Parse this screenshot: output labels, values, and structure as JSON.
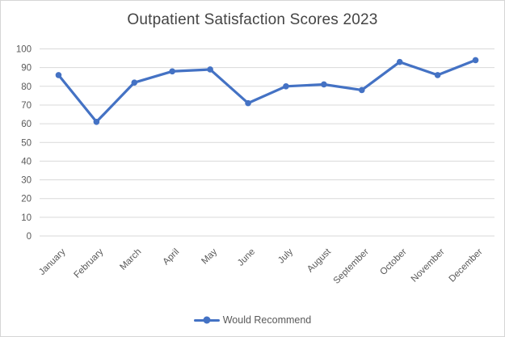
{
  "chart_data": {
    "type": "line",
    "title": "Outpatient Satisfaction Scores 2023",
    "categories": [
      "January",
      "February",
      "March",
      "April",
      "May",
      "June",
      "July",
      "August",
      "September",
      "October",
      "November",
      "December"
    ],
    "series": [
      {
        "name": "Would Recommend",
        "values": [
          86,
          61,
          82,
          88,
          89,
          71,
          80,
          81,
          78,
          93,
          86,
          94
        ]
      }
    ],
    "xlabel": "",
    "ylabel": "",
    "ylim": [
      0,
      100
    ],
    "ytick_step": 10,
    "yticks": [
      0,
      10,
      20,
      30,
      40,
      50,
      60,
      70,
      80,
      90,
      100
    ],
    "grid": "horizontal",
    "legend_position": "bottom",
    "x_label_rotation_deg": 45,
    "colors": {
      "series": "#4472C4",
      "title_text": "#444444",
      "axis_text": "#595959",
      "gridline": "#D9D9D9",
      "frame_border": "#D6D6D6",
      "background": "#FFFFFF"
    }
  }
}
